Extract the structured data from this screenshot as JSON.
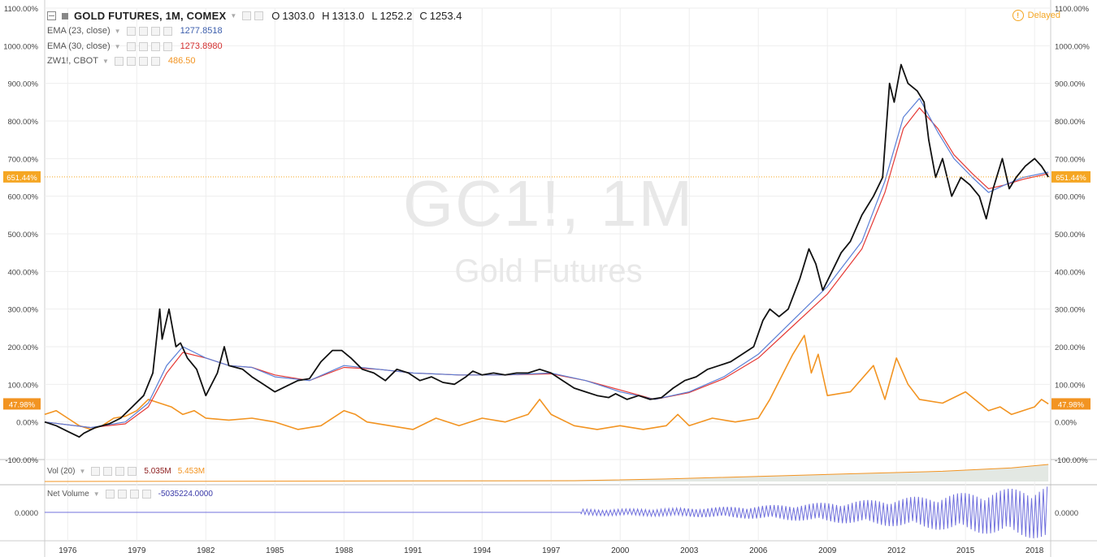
{
  "header": {
    "symbol": "GOLD FUTURES, 1M, COMEX",
    "o_label": "O",
    "o_value": "1303.0",
    "h_label": "H",
    "h_value": "1313.0",
    "l_label": "L",
    "l_value": "1252.2",
    "c_label": "C",
    "c_value": "1253.4",
    "delayed": "Delayed"
  },
  "legend": {
    "ema23": {
      "label": "EMA (23, close)",
      "value": "1277.8518",
      "color": "#3d5fad"
    },
    "ema30": {
      "label": "EMA (30, close)",
      "value": "1273.8980",
      "color": "#d32f2f"
    },
    "zw": {
      "label": "ZW1!, CBOT",
      "value": "486.50",
      "color": "#f29422"
    },
    "vol": {
      "label": "Vol (20)",
      "value1": "5.035M",
      "value2": "5.453M"
    },
    "netvol": {
      "label": "Net Volume",
      "value": "-5035224.0000",
      "color": "#3a3aa8"
    }
  },
  "watermark": {
    "line1": "GC1!, 1M",
    "line2": "Gold Futures"
  },
  "colors": {
    "gold": "#111111",
    "ema23": "#5b7fd6",
    "ema30": "#e53935",
    "wheat": "#f29422",
    "netvol": "#7070dd",
    "badge": "#f5a623",
    "grid": "#eeeeee"
  },
  "chart_data": {
    "type": "line",
    "y_ticks": [
      "1100.00%",
      "1000.00%",
      "900.00%",
      "800.00%",
      "700.00%",
      "600.00%",
      "500.00%",
      "400.00%",
      "300.00%",
      "200.00%",
      "100.00%",
      "0.00%",
      "-100.00%"
    ],
    "x_ticks": [
      "1976",
      "1979",
      "1982",
      "1985",
      "1988",
      "1991",
      "1994",
      "1997",
      "2000",
      "2003",
      "2006",
      "2009",
      "2012",
      "2015",
      "2018"
    ],
    "ylim": [
      -100,
      1100
    ],
    "xlim": [
      1975,
      2018.7
    ],
    "price_line_label": "651.44%",
    "wheat_label": "47.98%",
    "netvol_tick": "0.0000",
    "series": [
      {
        "name": "GOLD FUTURES, 1M, COMEX",
        "key": "gold",
        "x": [
          1975.0,
          1975.5,
          1976.0,
          1976.5,
          1976.7,
          1977.2,
          1977.8,
          1978.3,
          1978.8,
          1979.3,
          1979.7,
          1980.0,
          1980.1,
          1980.4,
          1980.7,
          1980.9,
          1981.2,
          1981.6,
          1982.0,
          1982.5,
          1982.8,
          1983.0,
          1983.3,
          1983.6,
          1984.0,
          1984.5,
          1985.0,
          1985.5,
          1986.0,
          1986.5,
          1987.0,
          1987.5,
          1987.9,
          1988.3,
          1988.8,
          1989.3,
          1989.8,
          1990.3,
          1990.8,
          1991.3,
          1991.8,
          1992.3,
          1992.8,
          1993.3,
          1993.6,
          1994.0,
          1994.5,
          1995.0,
          1995.5,
          1996.0,
          1996.5,
          1997.0,
          1997.5,
          1998.0,
          1998.5,
          1999.0,
          1999.5,
          1999.8,
          2000.3,
          2000.8,
          2001.3,
          2001.8,
          2002.3,
          2002.8,
          2003.3,
          2003.8,
          2004.3,
          2004.8,
          2005.3,
          2005.8,
          2006.2,
          2006.5,
          2006.9,
          2007.3,
          2007.8,
          2008.2,
          2008.5,
          2008.8,
          2009.2,
          2009.6,
          2010.0,
          2010.5,
          2011.0,
          2011.4,
          2011.7,
          2011.9,
          2012.2,
          2012.5,
          2012.9,
          2013.2,
          2013.4,
          2013.7,
          2014.0,
          2014.4,
          2014.8,
          2015.2,
          2015.6,
          2015.9,
          2016.2,
          2016.6,
          2016.9,
          2017.2,
          2017.6,
          2018.0,
          2018.3,
          2018.6
        ],
        "y": [
          0,
          -10,
          -25,
          -40,
          -30,
          -15,
          -5,
          10,
          40,
          70,
          130,
          300,
          220,
          300,
          200,
          210,
          170,
          140,
          70,
          130,
          200,
          150,
          145,
          140,
          120,
          100,
          80,
          95,
          110,
          115,
          160,
          190,
          190,
          170,
          140,
          130,
          110,
          140,
          130,
          110,
          120,
          105,
          100,
          120,
          135,
          125,
          130,
          125,
          130,
          130,
          140,
          130,
          110,
          90,
          80,
          70,
          65,
          75,
          60,
          70,
          60,
          65,
          90,
          110,
          120,
          140,
          150,
          160,
          180,
          200,
          270,
          300,
          280,
          300,
          380,
          460,
          420,
          350,
          400,
          450,
          480,
          550,
          600,
          650,
          900,
          850,
          950,
          900,
          880,
          850,
          750,
          650,
          700,
          600,
          650,
          630,
          600,
          540,
          620,
          700,
          620,
          650,
          680,
          700,
          680,
          651
        ]
      },
      {
        "name": "EMA (23, close)",
        "key": "ema23",
        "x": [
          1975.0,
          1977.0,
          1978.5,
          1979.5,
          1980.3,
          1981.0,
          1982.0,
          1983.0,
          1984.0,
          1985.0,
          1986.5,
          1988.0,
          1989.5,
          1991.0,
          1993.0,
          1995.0,
          1997.0,
          1998.5,
          2000.0,
          2001.5,
          2003.0,
          2004.5,
          2006.0,
          2007.5,
          2009.0,
          2010.5,
          2011.5,
          2012.3,
          2013.0,
          2013.8,
          2014.5,
          2015.3,
          2016.0,
          2016.7,
          2017.5,
          2018.6
        ],
        "y": [
          0,
          -15,
          0,
          50,
          150,
          200,
          170,
          150,
          145,
          120,
          110,
          150,
          140,
          130,
          125,
          125,
          130,
          110,
          80,
          60,
          80,
          120,
          180,
          270,
          360,
          480,
          640,
          810,
          860,
          770,
          700,
          650,
          610,
          630,
          650,
          664
        ]
      },
      {
        "name": "EMA (30, close)",
        "key": "ema30",
        "x": [
          1975.0,
          1977.0,
          1978.5,
          1979.5,
          1980.3,
          1981.0,
          1982.0,
          1983.0,
          1984.0,
          1985.0,
          1986.5,
          1988.0,
          1989.5,
          1991.0,
          1993.0,
          1995.0,
          1997.0,
          1998.5,
          2000.0,
          2001.5,
          2003.0,
          2004.5,
          2006.0,
          2007.5,
          2009.0,
          2010.5,
          2011.5,
          2012.3,
          2013.0,
          2013.8,
          2014.5,
          2015.3,
          2016.0,
          2016.7,
          2017.5,
          2018.6
        ],
        "y": [
          0,
          -15,
          -5,
          40,
          130,
          185,
          170,
          150,
          145,
          125,
          110,
          145,
          140,
          130,
          125,
          125,
          128,
          110,
          85,
          60,
          78,
          115,
          170,
          255,
          340,
          460,
          610,
          780,
          835,
          780,
          710,
          660,
          620,
          630,
          645,
          660
        ]
      },
      {
        "name": "ZW1!, CBOT",
        "key": "wheat",
        "x": [
          1975.0,
          1975.5,
          1976.0,
          1976.5,
          1977.0,
          1977.5,
          1978.0,
          1978.5,
          1979.0,
          1979.5,
          1980.0,
          1980.5,
          1981.0,
          1981.5,
          1982.0,
          1983.0,
          1984.0,
          1985.0,
          1986.0,
          1987.0,
          1988.0,
          1988.5,
          1989.0,
          1990.0,
          1991.0,
          1992.0,
          1993.0,
          1994.0,
          1995.0,
          1996.0,
          1996.5,
          1997.0,
          1998.0,
          1999.0,
          2000.0,
          2001.0,
          2002.0,
          2002.5,
          2003.0,
          2004.0,
          2005.0,
          2006.0,
          2006.5,
          2007.0,
          2007.5,
          2008.0,
          2008.3,
          2008.6,
          2009.0,
          2010.0,
          2011.0,
          2011.5,
          2012.0,
          2012.5,
          2013.0,
          2014.0,
          2015.0,
          2016.0,
          2016.5,
          2017.0,
          2017.5,
          2018.0,
          2018.3,
          2018.6
        ],
        "y": [
          20,
          30,
          10,
          -10,
          -20,
          -10,
          10,
          15,
          30,
          60,
          50,
          40,
          20,
          30,
          10,
          5,
          10,
          0,
          -20,
          -10,
          30,
          20,
          0,
          -10,
          -20,
          10,
          -10,
          10,
          0,
          20,
          60,
          20,
          -10,
          -20,
          -10,
          -20,
          -10,
          20,
          -10,
          10,
          0,
          10,
          60,
          120,
          180,
          230,
          130,
          180,
          70,
          80,
          150,
          60,
          170,
          100,
          60,
          50,
          80,
          30,
          40,
          20,
          30,
          40,
          60,
          48
        ]
      },
      {
        "name": "Vol (20)",
        "key": "volume",
        "x": [
          1975.0,
          1998.0,
          2002.0,
          2006.0,
          2010.0,
          2014.0,
          2017.0,
          2018.6
        ],
        "y": [
          0,
          0.05,
          0.15,
          0.3,
          0.45,
          0.6,
          0.8,
          1.0
        ]
      },
      {
        "name": "Net Volume",
        "key": "netvol",
        "x": [
          1975.0,
          1998.3,
          2018.6
        ],
        "y": [
          0,
          0,
          0
        ]
      }
    ]
  }
}
